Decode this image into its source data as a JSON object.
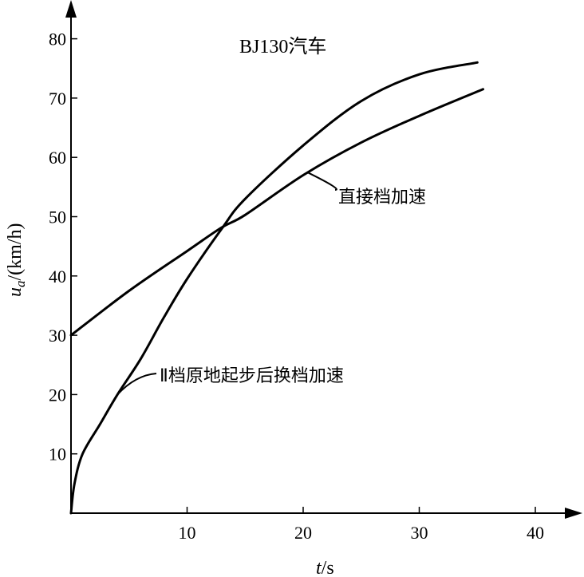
{
  "chart_data": {
    "type": "line",
    "title": "BJ130汽车",
    "xlabel_var": "t",
    "xlabel_unit": "/s",
    "ylabel_var": "u",
    "ylabel_sub": "a",
    "ylabel_unit": "/(km/h)",
    "xlim": [
      0,
      43
    ],
    "ylim": [
      0,
      84
    ],
    "xticks": [
      10,
      20,
      30,
      40
    ],
    "yticks": [
      10,
      20,
      30,
      40,
      50,
      60,
      70,
      80
    ],
    "grid": false,
    "series": [
      {
        "name": "直接档加速",
        "x": [
          0,
          5,
          10,
          13,
          15,
          20,
          25,
          30,
          35.5
        ],
        "y": [
          30,
          37.5,
          44.2,
          48.2,
          50.3,
          57,
          62.5,
          67,
          71.5
        ]
      },
      {
        "name": "Ⅱ档原地起步后换档加速",
        "x": [
          0,
          0.3,
          1,
          2.5,
          4,
          6,
          8,
          10,
          13,
          15,
          20,
          25,
          30,
          35
        ],
        "y": [
          0,
          5,
          10,
          15,
          20,
          26,
          33,
          39.5,
          48,
          53,
          62,
          69.5,
          74,
          76
        ]
      }
    ],
    "annotations": [
      {
        "text": "直接档加速",
        "series": 0,
        "at_x": 20.4
      },
      {
        "text": "Ⅱ档原地起步后换档加速",
        "series": 1,
        "at_x": 4.0
      }
    ]
  }
}
